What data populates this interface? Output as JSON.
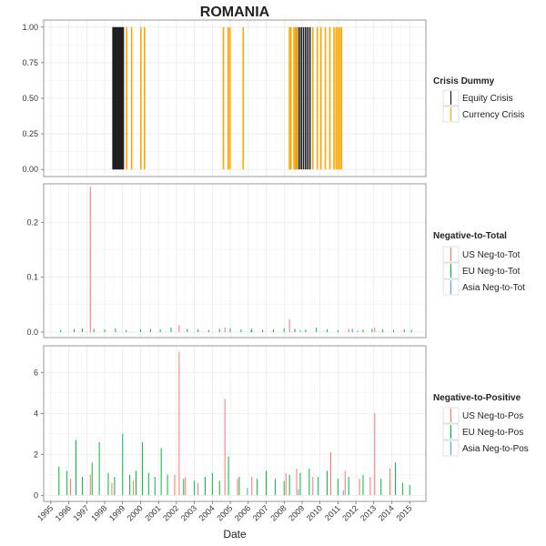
{
  "chart_data": {
    "type": "bar",
    "title": "ROMANIA",
    "xlabel": "Date",
    "x_ticks": [
      "1995",
      "1996",
      "1997",
      "1998",
      "1999",
      "2000",
      "2001",
      "2002",
      "2003",
      "2004",
      "2005",
      "2006",
      "2007",
      "2008",
      "2009",
      "2010",
      "2011",
      "2012",
      "2013",
      "2014",
      "2015"
    ],
    "xlim": [
      1994.6,
      2015.9
    ],
    "panels": [
      {
        "id": "crisis",
        "ylim": [
          -0.05,
          1.05
        ],
        "y_ticks": [
          0.0,
          0.25,
          0.5,
          0.75,
          1.0
        ],
        "y_tick_labels": [
          "0.00",
          "0.25",
          "0.50",
          "0.75",
          "1.00"
        ],
        "legend_title": "Crisis Dummy",
        "series": [
          {
            "name": "Equity Crisis",
            "color": "#1a1a1a",
            "periods": [
              [
                1998.42,
                1999.08
              ]
            ],
            "value": 1,
            "x": [
              1998.5,
              1998.62,
              1998.74,
              1998.86,
              1998.98,
              2008.72,
              2008.84,
              2008.96,
              2009.08,
              2009.2,
              2009.32,
              2009.44
            ]
          },
          {
            "name": "Currency Crisis",
            "color": "#ffa500",
            "value": 1,
            "x": [
              1999.22,
              1999.5,
              2000.02,
              2000.22,
              2004.62,
              2004.88,
              2004.98,
              2005.72,
              2008.3,
              2008.38,
              2008.55,
              2008.63,
              2008.7,
              2009.6,
              2009.85,
              2010.05,
              2010.3,
              2010.55,
              2010.78,
              2010.9,
              2011.0,
              2011.1,
              2011.2
            ]
          }
        ]
      },
      {
        "id": "neg-to-tot",
        "ylim": [
          -0.01,
          0.27
        ],
        "y_ticks": [
          0.0,
          0.1,
          0.2
        ],
        "y_tick_labels": [
          "0.0",
          "0.1",
          "0.2"
        ],
        "legend_title": "Negative-to-Total",
        "series": [
          {
            "name": "US Neg-to-Tot",
            "color": "#f8766d",
            "x": [
              1997.2,
              2002.15,
              2004.7,
              2008.3,
              2011.6,
              2013.05
            ],
            "values": [
              0.265,
              0.013,
              0.008,
              0.023,
              0.006,
              0.008
            ]
          },
          {
            "name": "EU Neg-to-Tot",
            "color": "#00ba38",
            "x": [
              1995.55,
              1996.3,
              1996.75,
              1997.4,
              1998.0,
              1998.6,
              1999.2,
              2000.0,
              2000.55,
              2001.1,
              2001.7,
              2002.6,
              2003.2,
              2003.8,
              2004.4,
              2005.0,
              2005.6,
              2006.2,
              2006.8,
              2007.4,
              2008.0,
              2008.6,
              2009.2,
              2009.8,
              2010.4,
              2011.0,
              2011.8,
              2012.4,
              2012.9,
              2013.5,
              2014.1,
              2014.7,
              2015.1
            ],
            "values": [
              0.004,
              0.005,
              0.007,
              0.006,
              0.005,
              0.007,
              0.004,
              0.005,
              0.006,
              0.005,
              0.008,
              0.006,
              0.005,
              0.004,
              0.006,
              0.007,
              0.005,
              0.006,
              0.004,
              0.005,
              0.007,
              0.006,
              0.005,
              0.008,
              0.005,
              0.004,
              0.006,
              0.005,
              0.006,
              0.005,
              0.004,
              0.005,
              0.004
            ]
          },
          {
            "name": "Asia Neg-to-Tot",
            "color": "#619cff",
            "x": [
              2006.15,
              2008.9,
              2012.1
            ],
            "values": [
              0.003,
              0.004,
              0.003
            ]
          }
        ]
      },
      {
        "id": "neg-to-pos",
        "ylim": [
          -0.3,
          7.3
        ],
        "y_ticks": [
          0,
          2,
          4,
          6
        ],
        "y_tick_labels": [
          "0",
          "2",
          "4",
          "6"
        ],
        "legend_title": "Negative-to-Positive",
        "series": [
          {
            "name": "US Neg-to-Pos",
            "color": "#f8766d",
            "x": [
              1996.1,
              1997.2,
              1998.4,
              1999.6,
              2001.9,
              2002.15,
              2002.5,
              2003.2,
              2004.7,
              2005.4,
              2006.2,
              2008.1,
              2008.7,
              2009.6,
              2010.6,
              2011.4,
              2012.2,
              2012.8,
              2013.05,
              2013.9
            ],
            "values": [
              0.8,
              1.0,
              0.6,
              0.7,
              1.0,
              7.0,
              0.9,
              0.6,
              4.7,
              0.8,
              0.9,
              1.1,
              1.3,
              0.9,
              2.1,
              1.2,
              0.8,
              0.9,
              4.0,
              1.3
            ]
          },
          {
            "name": "EU Neg-to-Pos",
            "color": "#00ba38",
            "x": [
              1995.45,
              1995.9,
              1996.4,
              1996.75,
              1997.3,
              1997.7,
              1998.2,
              1998.55,
              1999.0,
              1999.4,
              1999.75,
              2000.1,
              2000.45,
              2000.8,
              2001.15,
              2001.5,
              2002.4,
              2003.0,
              2003.6,
              2004.0,
              2004.4,
              2004.9,
              2005.5,
              2006.5,
              2007.0,
              2007.5,
              2008.0,
              2008.3,
              2008.9,
              2009.4,
              2009.9,
              2010.4,
              2011.0,
              2011.6,
              2012.4,
              2013.4,
              2014.2,
              2014.6,
              2015.0
            ],
            "values": [
              1.4,
              1.2,
              2.7,
              0.9,
              1.6,
              2.6,
              1.1,
              0.9,
              3.0,
              1.0,
              1.2,
              2.6,
              1.1,
              0.9,
              2.3,
              1.0,
              0.8,
              0.7,
              0.9,
              1.1,
              0.7,
              1.9,
              0.9,
              0.8,
              1.2,
              0.8,
              0.7,
              1.0,
              1.1,
              1.3,
              0.9,
              1.2,
              0.8,
              0.9,
              1.0,
              0.8,
              1.6,
              0.6,
              0.5
            ]
          },
          {
            "name": "Asia Neg-to-Pos",
            "color": "#619cff",
            "x": [
              2005.95,
              2008.8,
              2011.3
            ],
            "values": [
              0.35,
              0.3,
              0.25
            ]
          }
        ]
      }
    ]
  }
}
